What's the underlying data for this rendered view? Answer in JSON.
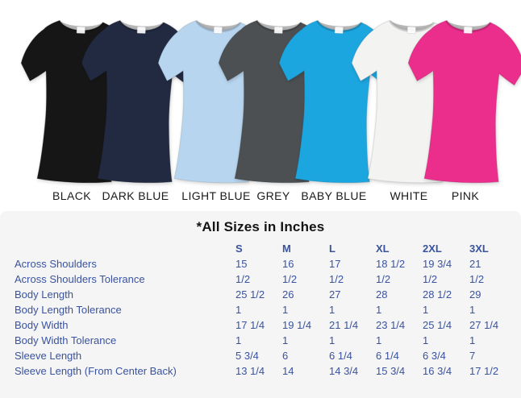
{
  "shirts": [
    {
      "label": "BLACK",
      "color": "#161616"
    },
    {
      "label": "DARK BLUE",
      "color": "#222a41"
    },
    {
      "label": "LIGHT BLUE",
      "color": "#b7d5ef"
    },
    {
      "label": "GREY",
      "color": "#4c5053"
    },
    {
      "label": "BABY BLUE",
      "color": "#1ca6e0"
    },
    {
      "label": "WHITE",
      "color": "#f3f3f1"
    },
    {
      "label": "PINK",
      "color": "#eb2d8c"
    }
  ],
  "size_chart": {
    "title": "*All Sizes in Inches",
    "columns": [
      "S",
      "M",
      "L",
      "XL",
      "2XL",
      "3XL"
    ],
    "rows": [
      {
        "label": "Across Shoulders",
        "values": [
          "15",
          "16",
          "17",
          "18 1/2",
          "19 3/4",
          "21"
        ]
      },
      {
        "label": "Across Shoulders Tolerance",
        "values": [
          "1/2",
          "1/2",
          "1/2",
          "1/2",
          "1/2",
          "1/2"
        ]
      },
      {
        "label": "Body Length",
        "values": [
          "25 1/2",
          "26",
          "27",
          "28",
          "28 1/2",
          "29"
        ]
      },
      {
        "label": "Body Length Tolerance",
        "values": [
          "1",
          "1",
          "1",
          "1",
          "1",
          "1"
        ]
      },
      {
        "label": "Body Width",
        "values": [
          "17 1/4",
          "19 1/4",
          "21 1/4",
          "23 1/4",
          "25 1/4",
          "27 1/4"
        ]
      },
      {
        "label": "Body Width Tolerance",
        "values": [
          "1",
          "1",
          "1",
          "1",
          "1",
          "1"
        ]
      },
      {
        "label": "Sleeve Length",
        "values": [
          "5 3/4",
          "6",
          "6 1/4",
          "6 1/4",
          "6 3/4",
          "7"
        ]
      },
      {
        "label": "Sleeve Length (From Center Back)",
        "values": [
          "13 1/4",
          "14",
          "14 3/4",
          "15 3/4",
          "16 3/4",
          "17 1/2"
        ]
      }
    ]
  },
  "colors": {
    "table_text": "#3a539e",
    "title_text": "#141414",
    "panel_bg": "#f5f5f6",
    "label_text": "#1a1a1a"
  }
}
